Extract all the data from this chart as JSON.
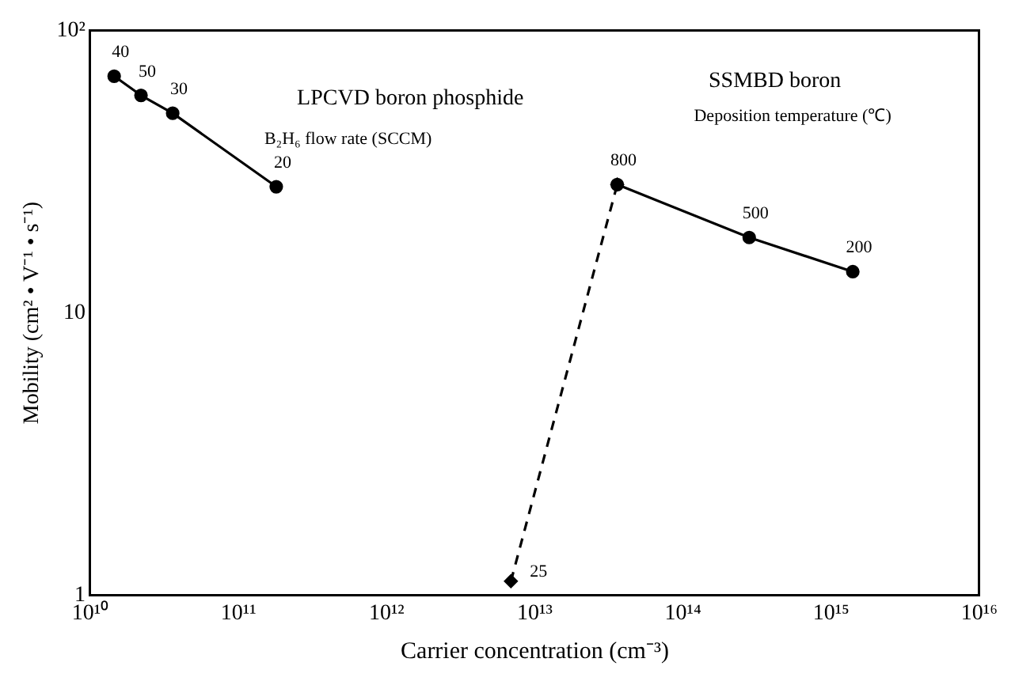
{
  "chart_data": {
    "type": "line",
    "xlabel": "Carrier concentration (cm⁻³)",
    "ylabel": "Mobility (cm² • V⁻¹ • s⁻¹)",
    "log": "xy",
    "legend": false,
    "xlim": [
      10000000000.0,
      1e+16
    ],
    "xticks": [
      {
        "value": 10000000000.0,
        "label": "10¹⁰"
      },
      {
        "value": 100000000000.0,
        "label": "10¹¹"
      },
      {
        "value": 1000000000000.0,
        "label": "10¹²"
      },
      {
        "value": 10000000000000.0,
        "label": "10¹³"
      },
      {
        "value": 100000000000000.0,
        "label": "10¹⁴"
      },
      {
        "value": 1000000000000000.0,
        "label": "10¹⁵"
      },
      {
        "value": 1e+16,
        "label": "10¹⁶"
      }
    ],
    "ylim": [
      1,
      100
    ],
    "yticks": [
      1,
      10,
      {
        "value": 100,
        "label": "10²"
      }
    ],
    "series": [
      {
        "color": "#000000",
        "marker": "circle",
        "line_style": "solid",
        "x": [
          14500000000.0,
          22000000000.0,
          36000000000.0,
          180000000000.0
        ],
        "values": [
          69,
          59,
          51,
          28
        ]
      },
      {
        "color": "#000000",
        "marker": "circle",
        "line_style": "solid",
        "x": [
          36000000000000.0,
          280000000000000.0,
          1400000000000000.0
        ],
        "values": [
          28.5,
          18.5,
          14
        ]
      },
      {
        "color": "#000000",
        "marker": "diamond",
        "line_style": "dashed",
        "x": [
          6900000000000.0,
          36000000000000.0
        ],
        "values": [
          1.12,
          28.5
        ]
      }
    ],
    "annotations": [
      "LPCVD boron phosphide",
      "B₂H₆ flow rate (SCCM)",
      "SSMBD boron",
      "Deposition temperature (℃)",
      {
        "text": "40",
        "x": 14500000000.0,
        "y": 69
      },
      {
        "text": "50",
        "x": 22000000000.0,
        "y": 59
      },
      {
        "text": "30",
        "x": 36000000000.0,
        "y": 51
      },
      {
        "text": "20",
        "x": 180000000000.0,
        "y": 28
      },
      {
        "text": "800",
        "x": 36000000000000.0,
        "y": 28.5
      },
      {
        "text": "500",
        "x": 280000000000000.0,
        "y": 18.5
      },
      {
        "text": "200",
        "x": 1400000000000000.0,
        "y": 14
      },
      {
        "text": "25",
        "x": 6900000000000.0,
        "y": 1.12
      }
    ]
  }
}
